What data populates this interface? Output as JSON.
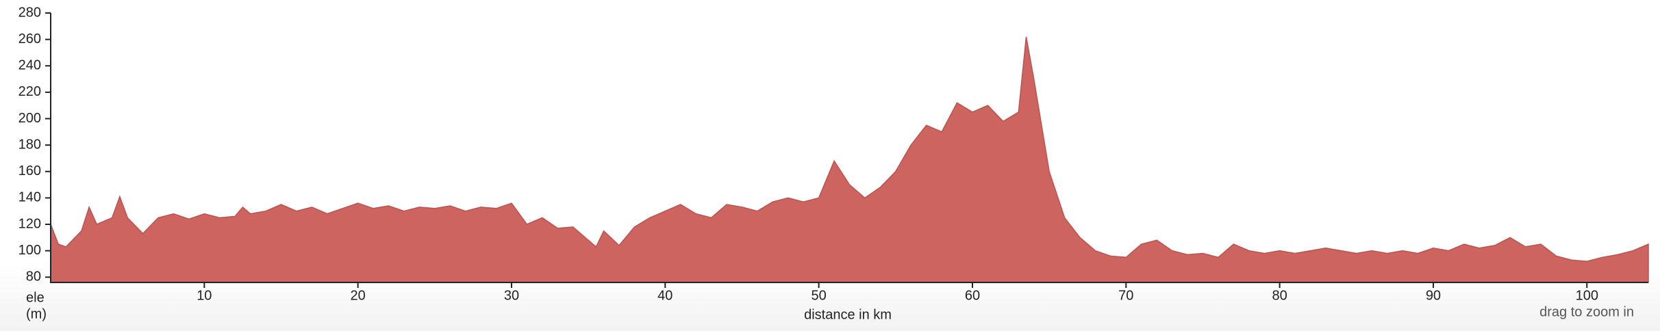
{
  "chart_data": {
    "type": "area",
    "ylabel_lines": [
      "ele",
      "(m)"
    ],
    "xlabel": "distance in km",
    "note": "drag to zoom in",
    "color": "#cd6460",
    "xlim": [
      0,
      104
    ],
    "xticks": [
      10,
      20,
      30,
      40,
      50,
      60,
      70,
      80,
      90,
      100
    ],
    "ylim": [
      76,
      280
    ],
    "yticks": [
      80,
      100,
      120,
      140,
      160,
      180,
      200,
      220,
      240,
      260,
      280
    ],
    "x": [
      0,
      0.5,
      1,
      2,
      2.5,
      3,
      4,
      4.5,
      5,
      6,
      7,
      8,
      9,
      10,
      11,
      12,
      12.5,
      13,
      14,
      15,
      16,
      17,
      18,
      19,
      20,
      21,
      22,
      23,
      24,
      25,
      26,
      27,
      28,
      29,
      30,
      31,
      32,
      33,
      34,
      35,
      35.5,
      36,
      37,
      38,
      39,
      40,
      41,
      42,
      43,
      44,
      45,
      46,
      47,
      48,
      49,
      50,
      51,
      52,
      53,
      54,
      55,
      56,
      57,
      58,
      59,
      60,
      61,
      62,
      63,
      63.5,
      64,
      65,
      66,
      67,
      68,
      69,
      70,
      71,
      72,
      73,
      74,
      75,
      76,
      77,
      78,
      79,
      80,
      81,
      82,
      83,
      84,
      85,
      86,
      87,
      88,
      89,
      90,
      91,
      92,
      93,
      94,
      95,
      96,
      97,
      98,
      99,
      100,
      101,
      102,
      103,
      104
    ],
    "values": [
      120,
      105,
      103,
      115,
      133,
      120,
      125,
      141,
      125,
      113,
      125,
      128,
      124,
      128,
      125,
      126,
      133,
      128,
      130,
      135,
      130,
      133,
      128,
      132,
      136,
      132,
      134,
      130,
      133,
      132,
      134,
      130,
      133,
      132,
      136,
      120,
      125,
      117,
      118,
      108,
      103,
      115,
      104,
      118,
      125,
      130,
      135,
      128,
      125,
      135,
      133,
      130,
      137,
      140,
      137,
      140,
      168,
      150,
      140,
      148,
      160,
      180,
      195,
      190,
      212,
      205,
      210,
      198,
      205,
      262,
      230,
      160,
      125,
      110,
      100,
      96,
      95,
      105,
      108,
      100,
      97,
      98,
      95,
      105,
      100,
      98,
      100,
      98,
      100,
      102,
      100,
      98,
      100,
      98,
      100,
      98,
      102,
      100,
      105,
      102,
      104,
      110,
      103,
      105,
      96,
      93,
      92,
      95,
      97,
      100,
      105
    ]
  }
}
